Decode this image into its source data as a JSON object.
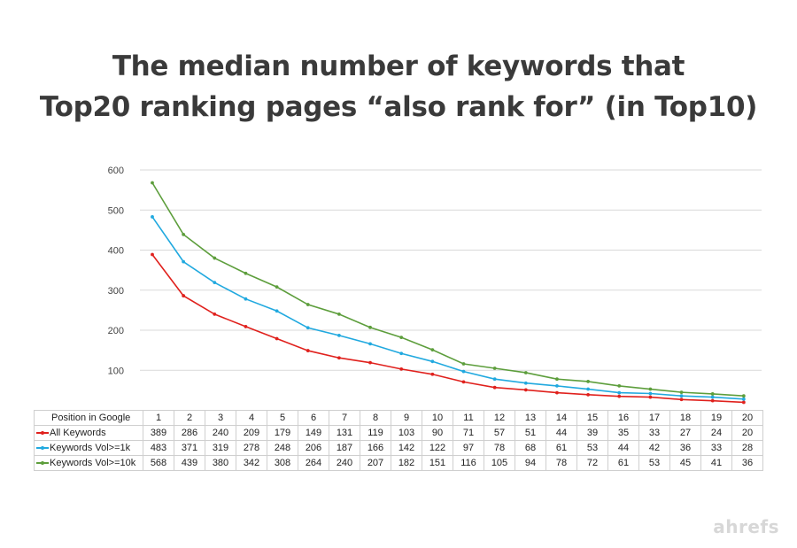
{
  "chart_data": {
    "type": "line",
    "title_lines": [
      "The median number of keywords that",
      "Top20 ranking pages “also rank for” (in Top10)"
    ],
    "xlabel": "Position in Google",
    "ylabel": "",
    "categories": [
      "1",
      "2",
      "3",
      "4",
      "5",
      "6",
      "7",
      "8",
      "9",
      "10",
      "11",
      "12",
      "13",
      "14",
      "15",
      "16",
      "17",
      "18",
      "19",
      "20"
    ],
    "yticks": [
      100,
      200,
      300,
      400,
      500,
      600
    ],
    "ylim": [
      0,
      600
    ],
    "grid": true,
    "legend": "data-table",
    "series": [
      {
        "name": "All Keywords",
        "color": "#e0211d",
        "values": [
          389,
          286,
          240,
          209,
          179,
          149,
          131,
          119,
          103,
          90,
          71,
          57,
          51,
          44,
          39,
          35,
          33,
          27,
          24,
          20
        ]
      },
      {
        "name": "Keywords Vol>=1k",
        "color": "#21a9df",
        "values": [
          483,
          371,
          319,
          278,
          248,
          206,
          187,
          166,
          142,
          122,
          97,
          78,
          68,
          61,
          53,
          44,
          42,
          36,
          33,
          28
        ]
      },
      {
        "name": "Keywords Vol>=10k",
        "color": "#5d9e3c",
        "values": [
          568,
          439,
          380,
          342,
          308,
          264,
          240,
          207,
          182,
          151,
          116,
          105,
          94,
          78,
          72,
          61,
          53,
          45,
          41,
          36
        ]
      }
    ]
  },
  "brand": "ahrefs",
  "colors": {
    "grid": "#d9d9d9",
    "title": "#3a3a3a"
  }
}
